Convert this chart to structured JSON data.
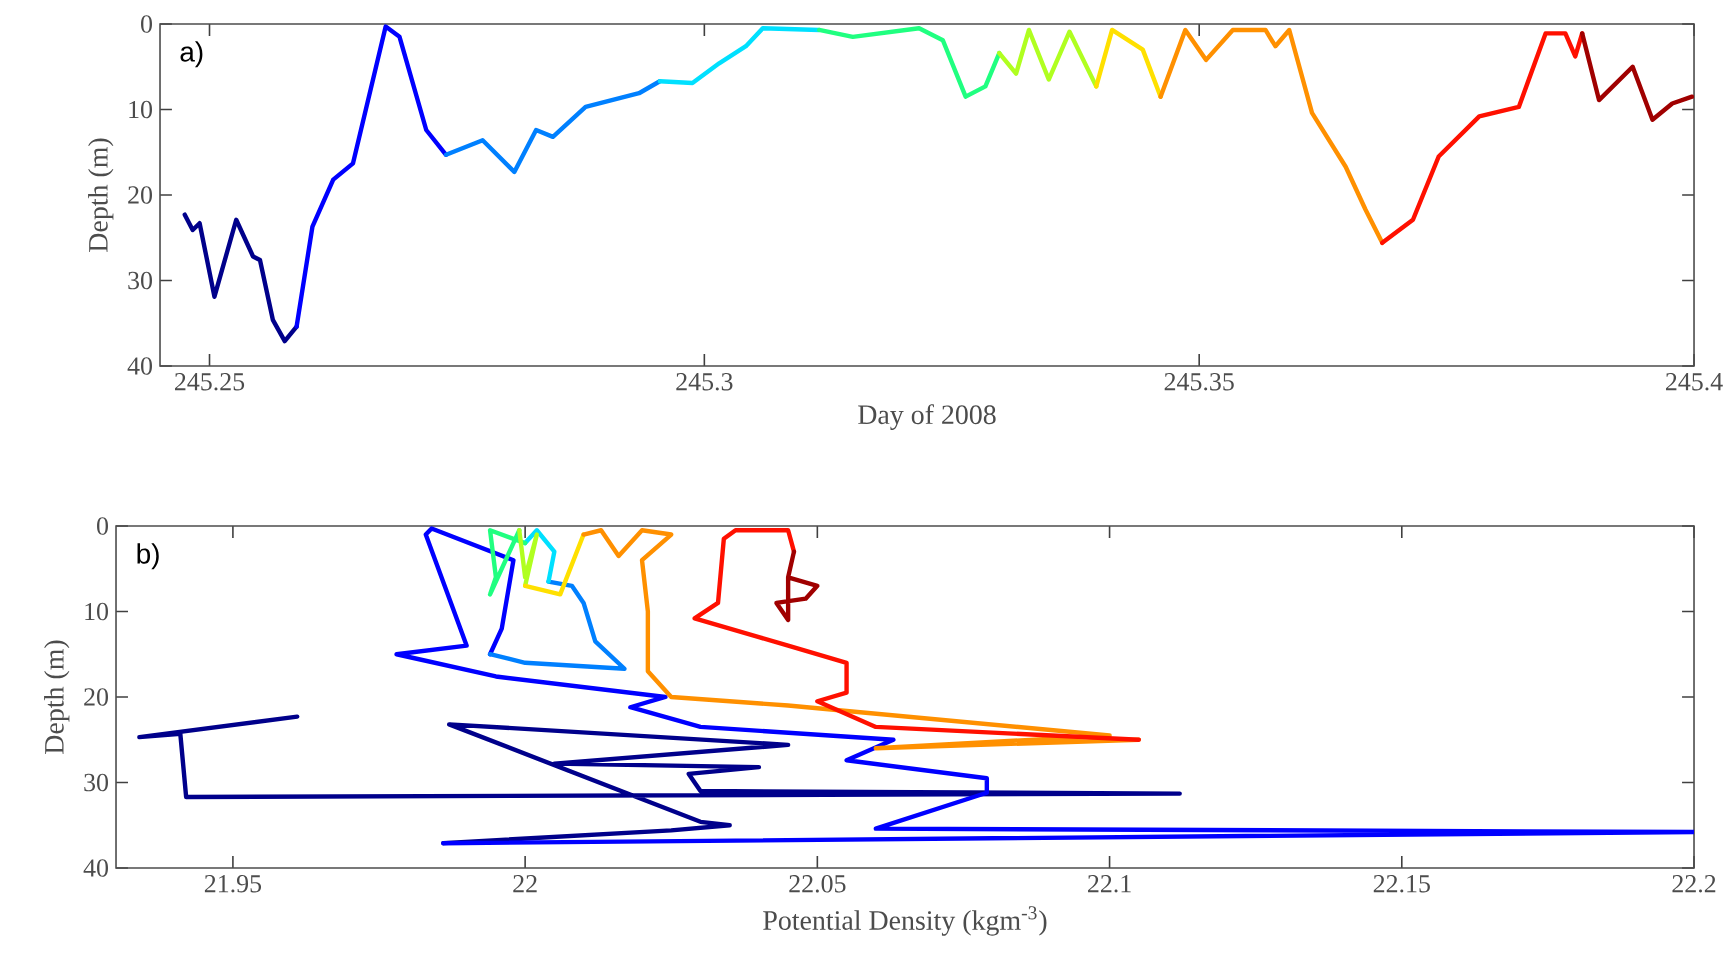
{
  "chart_data": [
    {
      "type": "line",
      "xlabel": "Day of 2008",
      "ylabel": "Depth (m)",
      "annotations": [
        "a)"
      ],
      "xlim": [
        245.245,
        245.4
      ],
      "ylim": [
        40,
        0
      ],
      "xticks": [
        245.25,
        245.3,
        245.35,
        245.4
      ],
      "yticks": [
        0,
        10,
        20,
        30,
        40
      ],
      "series": [
        {
          "color": "#00008b",
          "x": [
            245.2475,
            245.2483,
            245.249,
            245.2505,
            245.2527,
            245.2544,
            245.2551,
            245.2564,
            245.2576,
            245.2588
          ],
          "values": [
            22.3,
            24.1,
            23.3,
            31.9,
            22.9,
            27.2,
            27.6,
            34.6,
            37.1,
            35.4
          ]
        },
        {
          "color": "#0000ff",
          "x": [
            245.2588,
            245.2604,
            245.2625,
            245.2645,
            245.2678,
            245.2692,
            245.2719,
            245.2739
          ],
          "values": [
            35.4,
            23.7,
            18.2,
            16.3,
            0.3,
            1.5,
            12.4,
            15.3
          ]
        },
        {
          "color": "#0080ff",
          "x": [
            245.2739,
            245.2776,
            245.2808,
            245.283,
            245.2847,
            245.288,
            245.2934,
            245.2955
          ],
          "values": [
            15.3,
            13.6,
            17.3,
            12.4,
            13.2,
            9.7,
            8.1,
            6.7
          ]
        },
        {
          "color": "#00e0ff",
          "x": [
            245.2955,
            245.2988,
            245.3015,
            245.3042,
            245.3059,
            245.3116
          ],
          "values": [
            6.7,
            6.9,
            4.6,
            2.6,
            0.5,
            0.7
          ]
        },
        {
          "color": "#20ff80",
          "x": [
            245.3116,
            245.315,
            245.3217,
            245.3241,
            245.3264,
            245.3284,
            245.3298
          ],
          "values": [
            0.7,
            1.5,
            0.5,
            1.9,
            8.5,
            7.3,
            3.4
          ]
        },
        {
          "color": "#b0ff20",
          "x": [
            245.3298,
            245.3315,
            245.3328,
            245.3348,
            245.3369,
            245.3396
          ],
          "values": [
            3.4,
            5.8,
            0.7,
            6.5,
            0.9,
            7.3
          ]
        },
        {
          "color": "#ffe000",
          "x": [
            245.3396,
            245.3412,
            245.3443,
            245.3461
          ],
          "values": [
            7.3,
            0.7,
            3.0,
            8.5
          ]
        },
        {
          "color": "#ff9000",
          "x": [
            245.3461,
            245.3486,
            245.3507,
            245.3534,
            245.3567,
            245.3577,
            245.3591,
            245.3614,
            245.3648,
            245.3668,
            245.3685
          ],
          "values": [
            8.5,
            0.7,
            4.2,
            0.7,
            0.7,
            2.6,
            0.7,
            10.4,
            16.7,
            21.7,
            25.6
          ]
        },
        {
          "color": "#ff1000",
          "x": [
            245.3685,
            245.3716,
            245.3742,
            245.3783,
            245.3823,
            245.385,
            245.387,
            245.388,
            245.3887
          ],
          "values": [
            25.6,
            22.9,
            15.5,
            10.8,
            9.7,
            1.1,
            1.1,
            3.8,
            1.1
          ]
        },
        {
          "color": "#a00000",
          "x": [
            245.3887,
            245.3904,
            245.3938,
            245.3958,
            245.3978,
            245.3998
          ],
          "values": [
            1.1,
            8.9,
            5.0,
            11.2,
            9.3,
            8.5
          ]
        }
      ]
    },
    {
      "type": "line",
      "xlabel": "Potential Density (kgm$^{-3}$)",
      "ylabel": "Depth (m)",
      "annotations": [
        "b)"
      ],
      "xlim": [
        21.93,
        22.2
      ],
      "ylim": [
        40,
        0
      ],
      "xticks": [
        21.95,
        22,
        22.05,
        22.1,
        22.15,
        22.2
      ],
      "yticks": [
        0,
        10,
        20,
        30,
        40
      ],
      "series": [
        {
          "color": "#00008b",
          "x": [
            21.961,
            21.934,
            21.941,
            21.942,
            22.112,
            22.03,
            22.028,
            22.04,
            22.005,
            22.045,
            21.987,
            22.03,
            22.035,
            22.025,
            21.986
          ],
          "values": [
            22.3,
            24.7,
            24.3,
            31.7,
            31.3,
            31.0,
            29.0,
            28.2,
            27.8,
            25.6,
            23.2,
            34.6,
            35.0,
            35.6,
            37.1
          ]
        },
        {
          "color": "#0000ff",
          "x": [
            21.986,
            22.2,
            22.06,
            22.079,
            22.079,
            22.055,
            22.063,
            22.03,
            22.018,
            22.024,
            21.995,
            21.978,
            21.99,
            21.983,
            21.984,
            21.998,
            21.996,
            21.994
          ],
          "values": [
            37.1,
            35.8,
            35.4,
            31.2,
            29.5,
            27.4,
            25.0,
            23.5,
            21.2,
            20.0,
            17.6,
            15.0,
            14.0,
            1.0,
            0.3,
            4.0,
            12.0,
            15.0
          ]
        },
        {
          "color": "#0080ff",
          "x": [
            21.994,
            22.0,
            22.017,
            22.012,
            22.01,
            22.008,
            22.004
          ],
          "values": [
            15.0,
            16.0,
            16.7,
            13.5,
            9.0,
            7.0,
            6.5
          ]
        },
        {
          "color": "#00e0ff",
          "x": [
            22.004,
            22.005,
            22.002,
            22.0
          ],
          "values": [
            6.5,
            3.0,
            0.5,
            2.0
          ]
        },
        {
          "color": "#20ff80",
          "x": [
            22.0,
            21.994,
            21.995,
            21.994,
            21.999
          ],
          "values": [
            2.0,
            0.5,
            6.0,
            8.0,
            0.5
          ]
        },
        {
          "color": "#b0ff20",
          "x": [
            21.999,
            22.0,
            22.002,
            22.0
          ],
          "values": [
            0.5,
            6.0,
            1.0,
            7.0
          ]
        },
        {
          "color": "#ffe000",
          "x": [
            22.0,
            22.006,
            22.01
          ],
          "values": [
            7.0,
            8.0,
            1.0
          ]
        },
        {
          "color": "#ff9000",
          "x": [
            22.01,
            22.013,
            22.016,
            22.02,
            22.025,
            22.02,
            22.021,
            22.021,
            22.025,
            22.045,
            22.1,
            22.06,
            22.105
          ],
          "values": [
            1.0,
            0.5,
            3.5,
            0.5,
            1.0,
            4.0,
            10.0,
            17.0,
            20.0,
            21.0,
            24.5,
            26.0,
            25.0
          ]
        },
        {
          "color": "#ff1000",
          "x": [
            22.105,
            22.06,
            22.05,
            22.055,
            22.055,
            22.045,
            22.04,
            22.029,
            22.033,
            22.034,
            22.036,
            22.045,
            22.046
          ],
          "values": [
            25.0,
            23.5,
            20.5,
            19.5,
            16.0,
            14.0,
            13.0,
            10.8,
            9.0,
            1.5,
            0.5,
            0.5,
            3.0
          ]
        },
        {
          "color": "#a00000",
          "x": [
            22.046,
            22.045,
            22.05,
            22.048,
            22.043,
            22.045,
            22.045
          ],
          "values": [
            3.0,
            6.0,
            7.0,
            8.5,
            9.0,
            11.0,
            6.0
          ]
        }
      ]
    }
  ]
}
